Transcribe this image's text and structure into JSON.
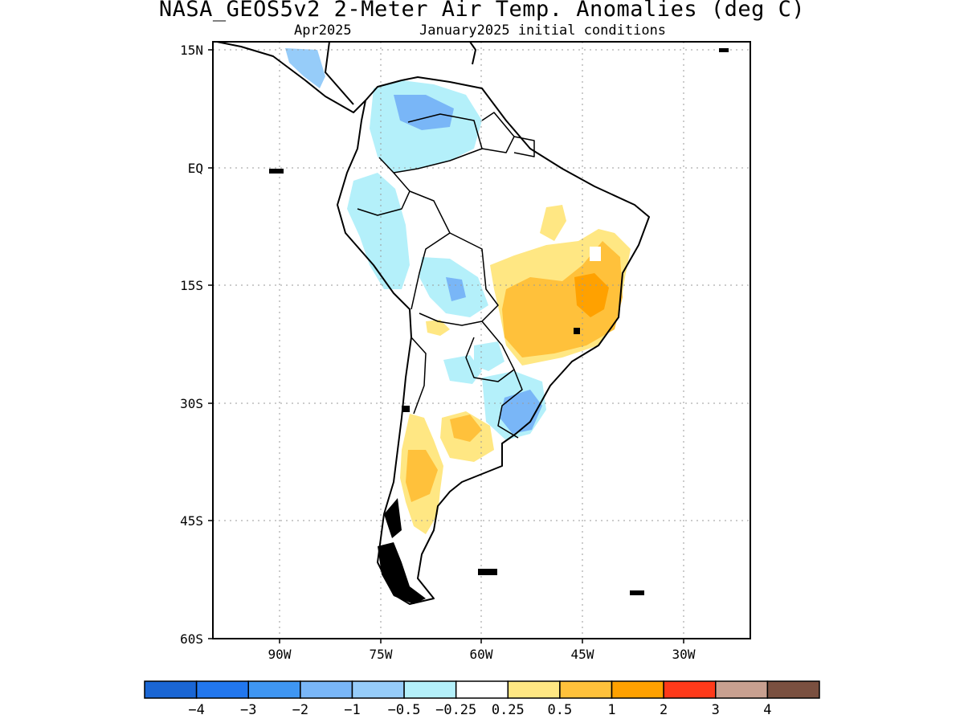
{
  "title": "NASA_GEOS5v2 2-Meter Air Temp. Anomalies (deg C)",
  "subtitle_left": "Apr2025",
  "subtitle_right": "January2025 initial conditions",
  "lat_labels": [
    "15N",
    "EQ",
    "15S",
    "30S",
    "45S",
    "60S"
  ],
  "lon_labels": [
    "90W",
    "75W",
    "60W",
    "45W",
    "30W"
  ],
  "colorbar": {
    "colors": [
      "#1a66d4",
      "#2277ee",
      "#3f96f2",
      "#79b6f7",
      "#96ccf9",
      "#b4f0fa",
      "#ffffff",
      "#ffe783",
      "#ffc13b",
      "#ffa100",
      "#ff3a1a",
      "#c8a090",
      "#7a5040"
    ],
    "labels": [
      "−4",
      "−3",
      "−2",
      "−1",
      "−0.5",
      "−0.25",
      "0.25",
      "0.5",
      "1",
      "2",
      "3",
      "4"
    ]
  },
  "map": {
    "lon_range": [
      -100,
      -20
    ],
    "lat_range": [
      -60,
      15
    ],
    "grid": "dotted",
    "anomaly_colors": {
      "warm_light": "#ffe783",
      "warm": "#ffc13b",
      "warm_strong": "#ffa100",
      "cool_light": "#b4f0fa",
      "cool": "#96ccf9",
      "cool_mid": "#79b6f7",
      "cool_strong": "#3f96f2"
    }
  }
}
